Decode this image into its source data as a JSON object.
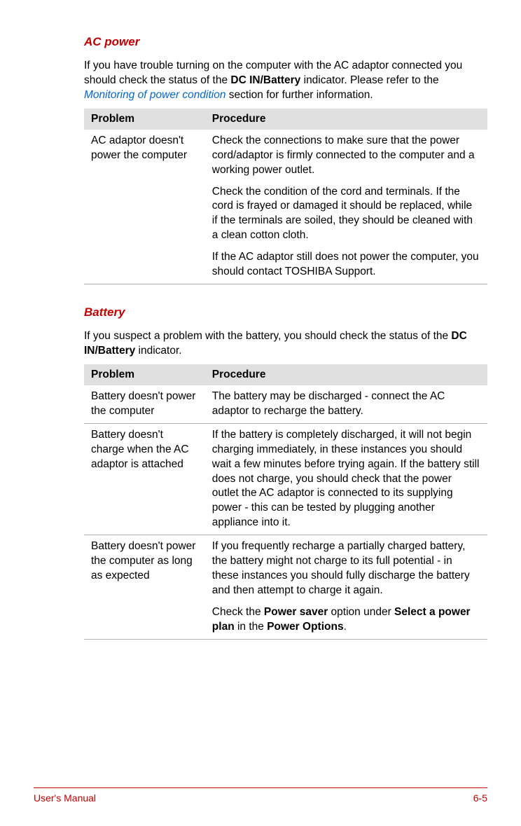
{
  "section1": {
    "heading": "AC power",
    "intro_pre": "If you have trouble turning on the computer with the AC adaptor connected you should check the status of the ",
    "intro_bold": "DC IN/Battery",
    "intro_mid": " indicator. Please refer to the ",
    "intro_link": "Monitoring of power condition",
    "intro_post": " section for further information.",
    "col1": "Problem",
    "col2": "Procedure",
    "row1_problem": "AC adaptor doesn't power the computer",
    "row1_proc1": "Check the connections to make sure that the power cord/adaptor is firmly connected to the computer and a working power outlet.",
    "row1_proc2": "Check the condition of the cord and terminals. If the cord is frayed or damaged it should be replaced, while if the terminals are soiled, they should be cleaned with a clean cotton cloth.",
    "row1_proc3": "If the AC adaptor still does not power the computer, you should contact TOSHIBA Support."
  },
  "section2": {
    "heading": "Battery",
    "intro_pre": "If you suspect a problem with the battery, you should check the status of the ",
    "intro_bold": "DC IN/Battery",
    "intro_post": " indicator.",
    "col1": "Problem",
    "col2": "Procedure",
    "row1_problem": "Battery doesn't power the computer",
    "row1_proc": "The battery may be discharged - connect the AC adaptor to recharge the battery.",
    "row2_problem": "Battery doesn't charge when the AC adaptor is attached",
    "row2_proc": "If the battery is completely discharged, it will not begin charging immediately, in these instances you should wait a few minutes before trying again. If the battery still does not charge, you should check that the power outlet the AC adaptor is connected to its supplying power - this can be tested by plugging another appliance into it.",
    "row3_problem": "Battery doesn't power the computer as long as expected",
    "row3_proc1": "If you frequently recharge a partially charged battery, the battery might not charge to its full potential - in these instances you should fully discharge the battery and then attempt to charge it again.",
    "row3_proc2_pre": "Check the ",
    "row3_proc2_b1": "Power saver",
    "row3_proc2_mid1": " option under ",
    "row3_proc2_b2": "Select a power plan",
    "row3_proc2_mid2": " in the ",
    "row3_proc2_b3": "Power Options",
    "row3_proc2_post": "."
  },
  "footer": {
    "left": "User's Manual",
    "right": "6-5"
  },
  "colors": {
    "heading": "#c00000",
    "link": "#0066cc",
    "table_header_bg": "#e0e0e0",
    "border": "#b0b0b0",
    "footer_border": "#c00000"
  }
}
